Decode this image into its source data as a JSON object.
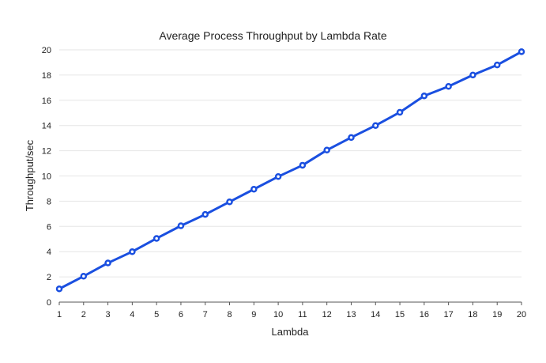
{
  "chart_data": {
    "type": "line",
    "title": "Average Process Throughput by Lambda Rate",
    "xlabel": "Lambda",
    "ylabel": "Throughput/sec",
    "x": [
      1,
      2,
      3,
      4,
      5,
      6,
      7,
      8,
      9,
      10,
      11,
      12,
      13,
      14,
      15,
      16,
      17,
      18,
      19,
      20
    ],
    "series": [
      {
        "color": "#1a4fe0",
        "values": [
          1.05,
          2.05,
          3.1,
          4.0,
          5.05,
          6.05,
          6.95,
          7.95,
          8.95,
          9.95,
          10.85,
          12.05,
          13.05,
          14.0,
          15.05,
          16.35,
          17.1,
          18.0,
          18.8,
          19.85
        ]
      }
    ],
    "xlim": [
      1,
      20
    ],
    "ylim": [
      0,
      20
    ],
    "yticks": [
      0,
      2,
      4,
      6,
      8,
      10,
      12,
      14,
      16,
      18,
      20
    ],
    "xticks": [
      1,
      2,
      3,
      4,
      5,
      6,
      7,
      8,
      9,
      10,
      11,
      12,
      13,
      14,
      15,
      16,
      17,
      18,
      19,
      20
    ],
    "grid": "horizontal",
    "legend": "none"
  }
}
